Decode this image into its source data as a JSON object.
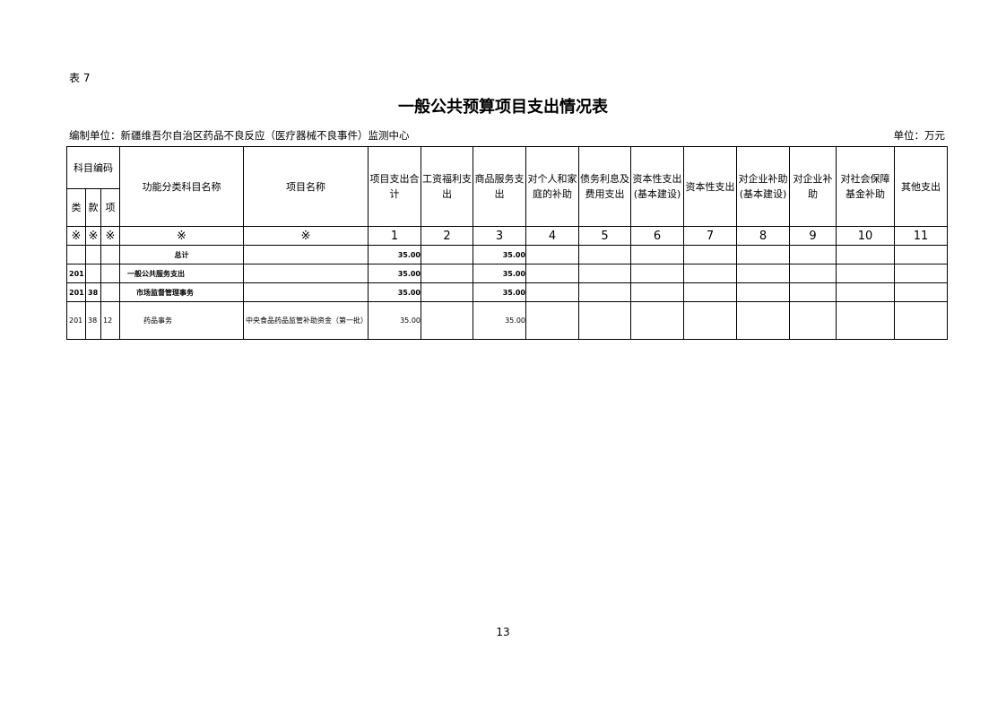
{
  "table_label": "表 7",
  "title": "一般公共预算项目支出情况表",
  "unit_left": "编制单位：新疆维吾尔自治区药品不良反应（医疗器械不良事件）监测中心",
  "unit_right": "单位：万元",
  "header": {
    "code_group": "科目编码",
    "lei": "类",
    "kuan": "款",
    "xiang": "项",
    "func_name": "功能分类科目名称",
    "project_name": "项目名称",
    "cols": [
      "项目支出合计",
      "工资福利支出",
      "商品服务支出",
      "对个人和家庭的补助",
      "债务利息及费用支出",
      "资本性支出(基本建设)",
      "资本性支出",
      "对企业补助(基本建设)",
      "对企业补助",
      "对社会保障基金补助",
      "其他支出"
    ]
  },
  "index_row": {
    "mark": "※",
    "nums": [
      "1",
      "2",
      "3",
      "4",
      "5",
      "6",
      "7",
      "8",
      "9",
      "10",
      "11"
    ]
  },
  "rows": [
    {
      "lei": "",
      "kuan": "",
      "xiang": "",
      "name": "总计",
      "project": "",
      "total": "35.00",
      "goods": "35.00"
    },
    {
      "lei": "201",
      "kuan": "",
      "xiang": "",
      "name": "一般公共服务支出",
      "project": "",
      "total": "35.00",
      "goods": "35.00"
    },
    {
      "lei": "201",
      "kuan": "38",
      "xiang": "",
      "name": "市场监督管理事务",
      "project": "",
      "total": "35.00",
      "goods": "35.00"
    },
    {
      "lei": "201",
      "kuan": "38",
      "xiang": "12",
      "name": "药品事务",
      "project": "中央食品药品监管补助资金（第一批）",
      "total": "35.00",
      "goods": "35.00"
    }
  ],
  "page_number": "13"
}
